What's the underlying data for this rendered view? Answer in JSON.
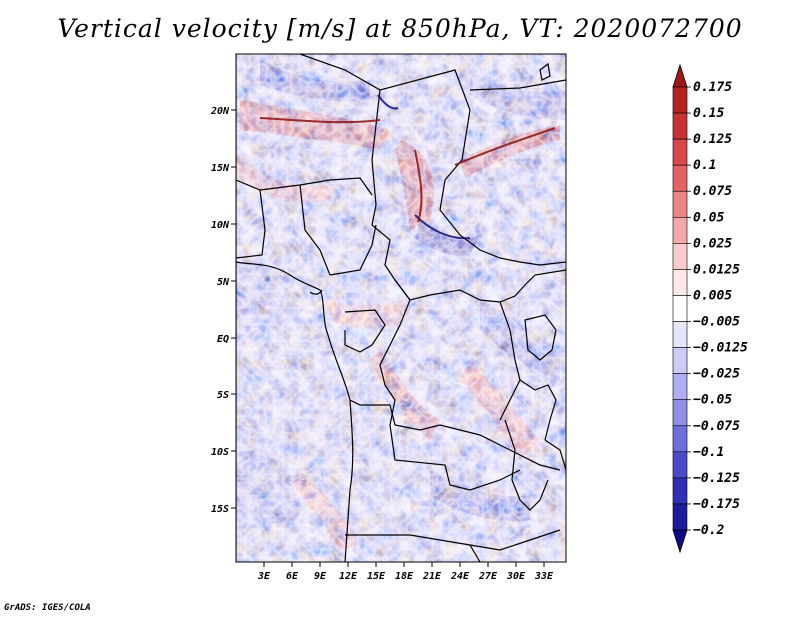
{
  "title": "Vertical velocity [m/s] at 850hPa, VT: 2020072700",
  "credit": "GrADS: IGES/COLA",
  "map": {
    "lat_labels": [
      "20N",
      "15N",
      "10N",
      "5N",
      "EQ",
      "5S",
      "10S",
      "15S"
    ],
    "lon_labels": [
      "3E",
      "6E",
      "9E",
      "12E",
      "15E",
      "18E",
      "21E",
      "24E",
      "27E",
      "30E",
      "33E"
    ],
    "region": "Central Africa"
  },
  "colorbar": {
    "levels": [
      "0.175",
      "0.15",
      "0.125",
      "0.1",
      "0.075",
      "0.05",
      "0.025",
      "0.0125",
      "0.005",
      "−0.005",
      "−0.0125",
      "−0.025",
      "−0.05",
      "−0.075",
      "−0.1",
      "−0.125",
      "−0.175",
      "−0.2"
    ],
    "colors": [
      "#a01818",
      "#b42222",
      "#c83232",
      "#d84848",
      "#e46464",
      "#ec8484",
      "#f4a8a8",
      "#f8cccc",
      "#fde8e8",
      "#ffffff",
      "#e6e6fa",
      "#ccccf6",
      "#aeaef0",
      "#9090e6",
      "#6e6edc",
      "#4c4cca",
      "#3030b4",
      "#1c1c9a",
      "#0c0c86"
    ],
    "top_arrow_color": "#a01818",
    "bottom_arrow_color": "#0c0c86"
  }
}
